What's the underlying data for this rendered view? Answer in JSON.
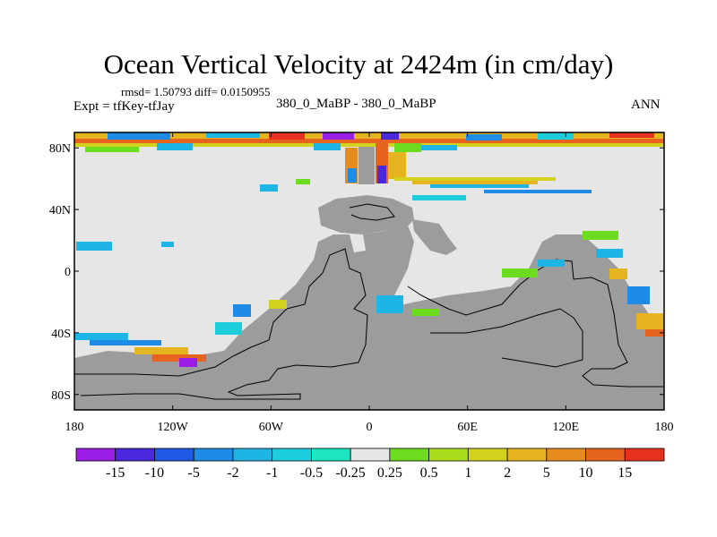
{
  "figure": {
    "title": "Ocean Vertical Velocity at 2424m (in cm/day)",
    "stats": "rmsd= 1.50793 diff= 0.0150955",
    "expt": "Expt = tfKey-tfJay",
    "case": "380_0_MaBP - 380_0_MaBP",
    "season": "ANN"
  },
  "map": {
    "lat_ticks": [
      "80N",
      "40N",
      "0",
      "40S",
      "80S"
    ],
    "lon_ticks": [
      "180",
      "120W",
      "60W",
      "0",
      "60E",
      "120E",
      "180"
    ],
    "lat_range": [
      -90,
      90
    ],
    "lon_range": [
      -180,
      180
    ],
    "colors": {
      "land": "#9c9c9c",
      "ocean_near_zero": "#e6e6e6",
      "coast_line": "#000000"
    }
  },
  "colorbar": {
    "labels": [
      "-15",
      "-10",
      "-5",
      "-2",
      "-1",
      "-0.5",
      "-0.25",
      "0.25",
      "0.5",
      "1",
      "2",
      "5",
      "10",
      "15"
    ],
    "colors": [
      "#9b1ee6",
      "#4b28dc",
      "#1e5ae6",
      "#1e8ce6",
      "#1eb4e6",
      "#1ecddc",
      "#1ee6c3",
      "#e6e6e6",
      "#6edc1e",
      "#aadc1e",
      "#d2d21e",
      "#e6b41e",
      "#e68c1e",
      "#e6641e",
      "#e6321e"
    ]
  }
}
